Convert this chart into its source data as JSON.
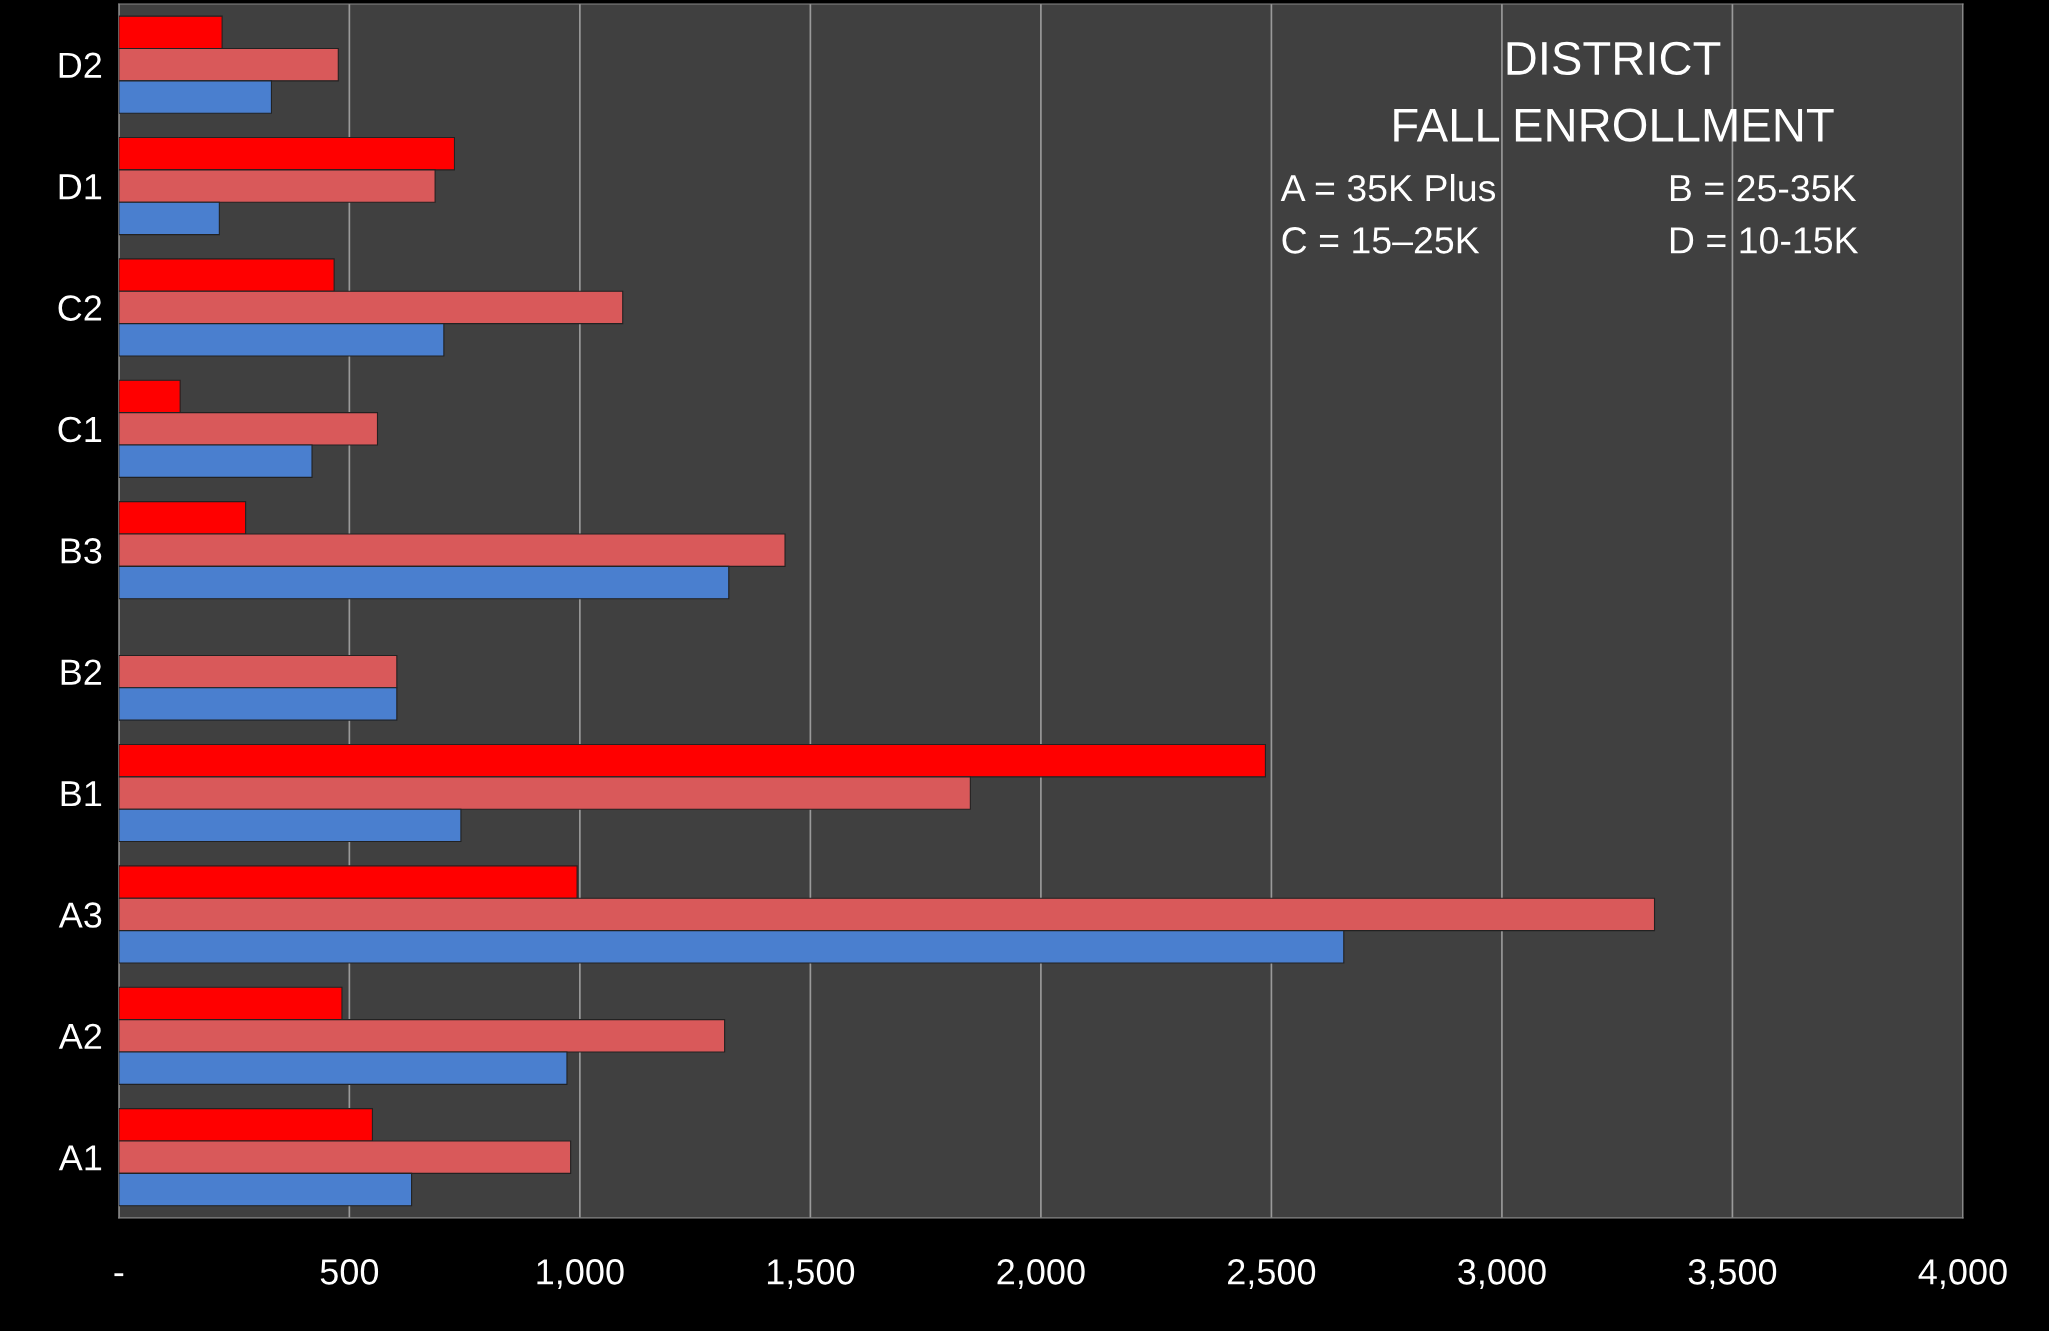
{
  "chart_data": {
    "type": "bar",
    "orientation": "horizontal",
    "title": "DISTRICT",
    "subtitle": "FALL ENROLLMENT",
    "annotations": [
      "A = 35K Plus",
      "B = 25-35K",
      "C = 15–25K",
      "D = 10-15K"
    ],
    "categories": [
      "D2",
      "D1",
      "C2",
      "C1",
      "B3",
      "B2",
      "B1",
      "A3",
      "A2",
      "A1"
    ],
    "series": [
      {
        "color": "#ff0000",
        "values": [
          224,
          728,
          467,
          133,
          275,
          null,
          2487,
          994,
          484,
          550
        ]
      },
      {
        "color": "#d9595a",
        "values": [
          476,
          686,
          1093,
          561,
          1445,
          603,
          1847,
          3331,
          1314,
          980
        ]
      },
      {
        "color": "#4a7fcf",
        "values": [
          331,
          218,
          705,
          419,
          1323,
          603,
          742,
          2657,
          972,
          635
        ]
      }
    ],
    "xlim": [
      0,
      4000
    ],
    "xticks": [
      {
        "value": 0,
        "label": "-"
      },
      500,
      {
        "value": 1000,
        "label": "1,000"
      },
      {
        "value": 1500,
        "label": "1,500"
      },
      {
        "value": 2000,
        "label": "2,000"
      },
      {
        "value": 2500,
        "label": "2,500"
      },
      {
        "value": 3000,
        "label": "3,000"
      },
      {
        "value": 3500,
        "label": "3,500"
      },
      {
        "value": 4000,
        "label": "4,000"
      }
    ],
    "grid": "x",
    "legend": false
  }
}
